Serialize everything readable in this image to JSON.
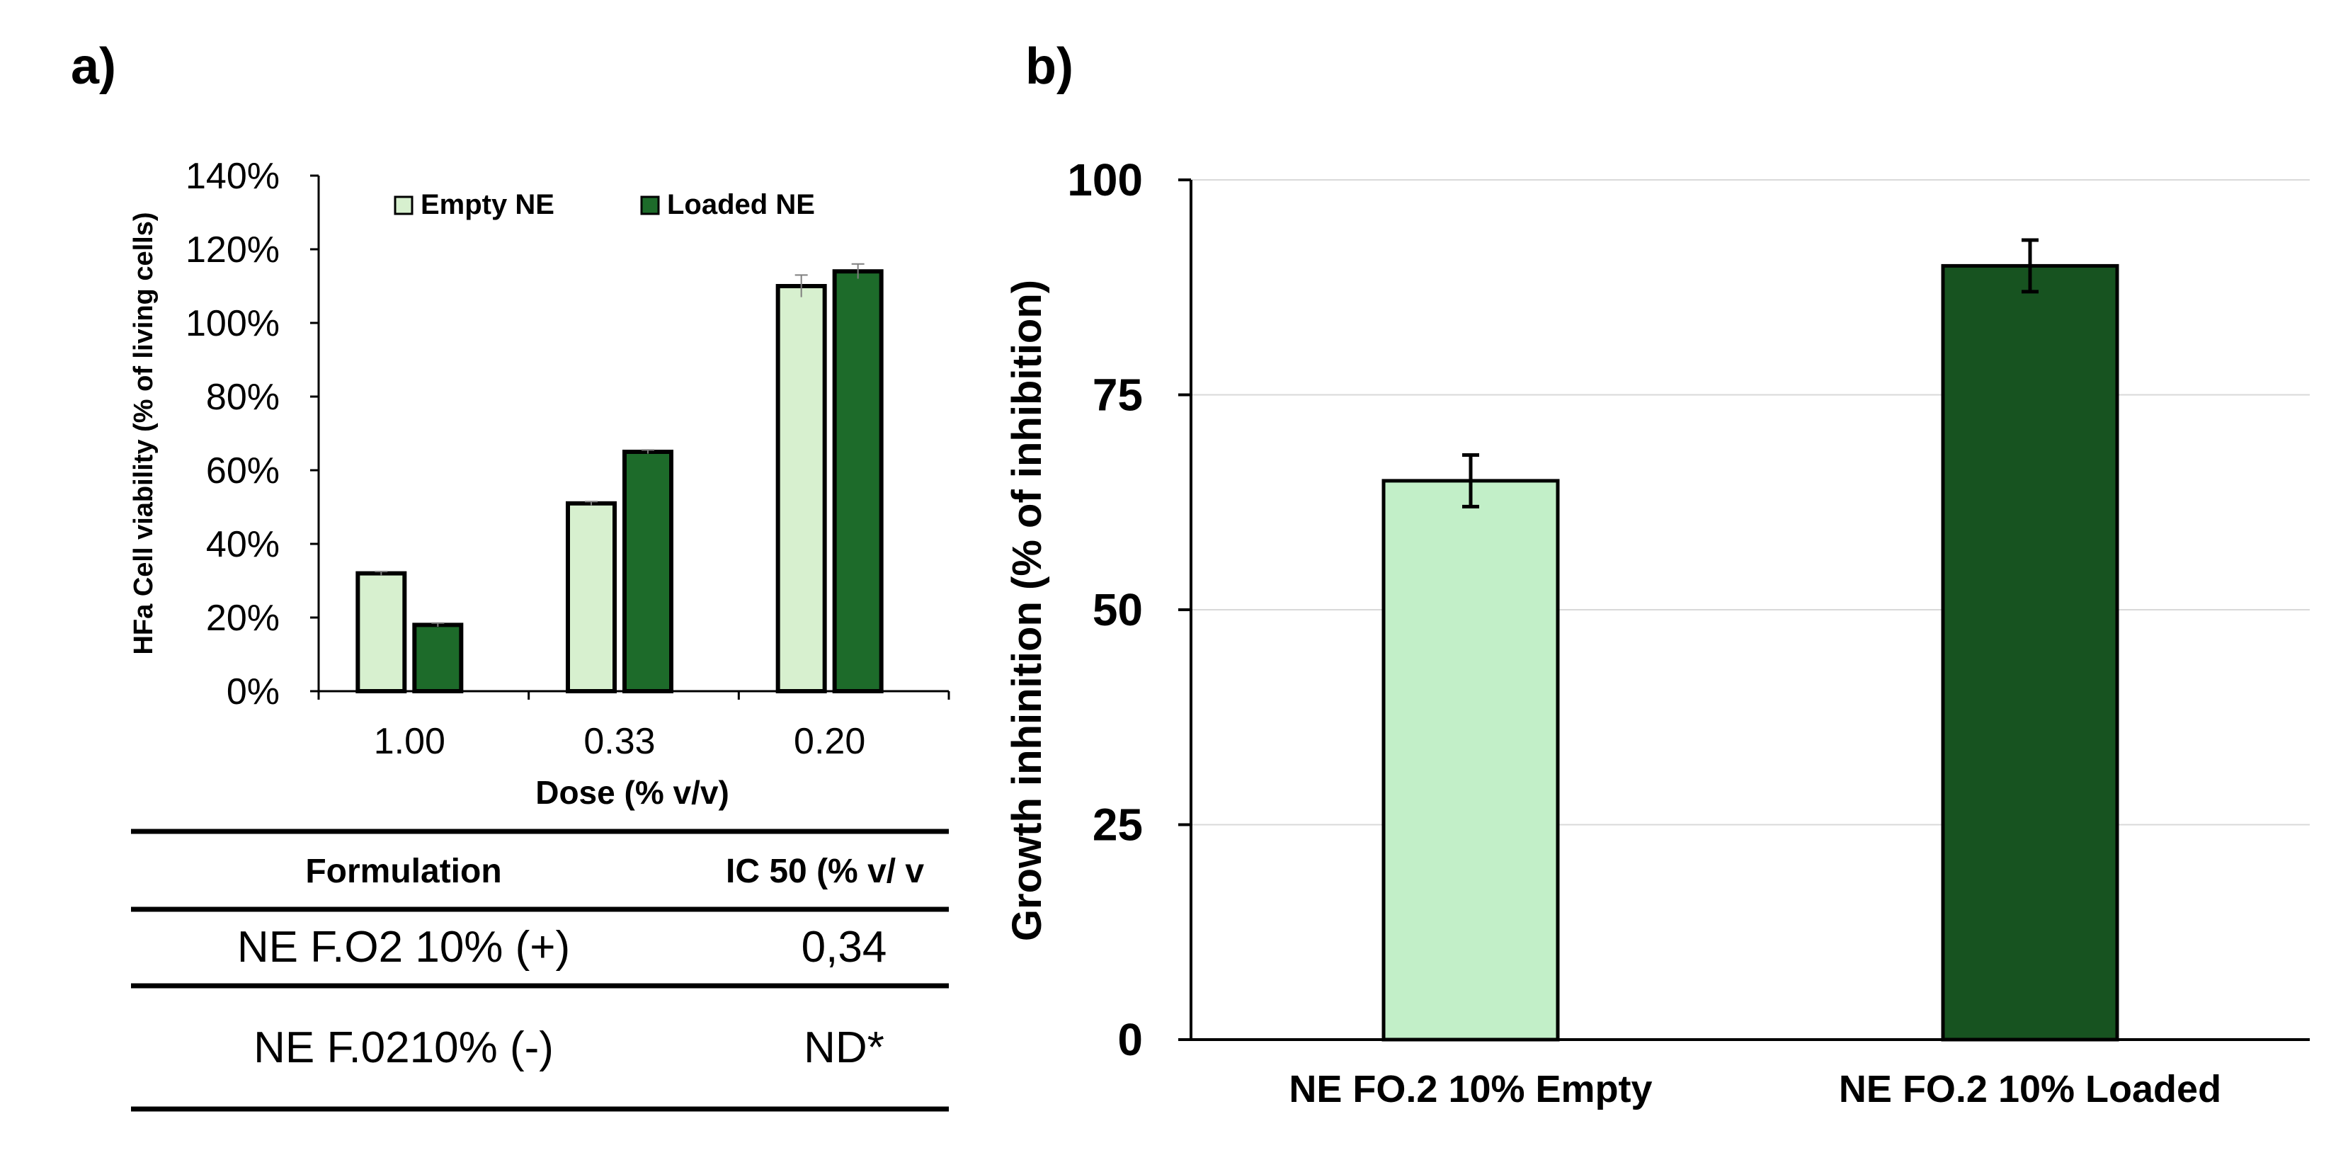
{
  "panels": {
    "a_label": "a)",
    "b_label": "b)"
  },
  "colors": {
    "empty": "#d7f0cf",
    "loaded": "#1d6b2a",
    "empty_b": "#c2efc8",
    "loaded_b": "#175320",
    "gridline": "#d9d9d9",
    "axis": "#000000",
    "errorbar_a": "#7f7f7f",
    "errorbar_b": "#000000"
  },
  "chart_data": [
    {
      "type": "bar",
      "panel": "a",
      "categories": [
        "1.00",
        "0.33",
        "0.20"
      ],
      "series": [
        {
          "name": "Empty NE",
          "values": [
            32,
            51,
            110
          ],
          "errors": [
            0.5,
            0.5,
            3
          ]
        },
        {
          "name": "Loaded NE",
          "values": [
            18,
            65,
            114
          ],
          "errors": [
            0.5,
            0.5,
            2
          ]
        }
      ],
      "xlabel": "Dose (% v/v)",
      "ylabel": "HFa Cell viability (% of living cells)",
      "ylim": [
        0,
        140
      ],
      "yticks": [
        "0%",
        "20%",
        "40%",
        "60%",
        "80%",
        "100%",
        "120%",
        "140%"
      ],
      "legend_position": "top",
      "grid": false
    },
    {
      "type": "bar",
      "panel": "b",
      "categories": [
        "NE FO.2 10% Empty",
        "NE FO.2 10% Loaded"
      ],
      "values": [
        65,
        90
      ],
      "errors": [
        3,
        3
      ],
      "ylabel": "Growth inhinition (% of inhibition)",
      "ylim": [
        0,
        100
      ],
      "yticks": [
        "0",
        "25",
        "50",
        "75",
        "100"
      ],
      "grid": true
    }
  ],
  "table": {
    "headers": [
      "Formulation",
      "IC 50 (% v/ v"
    ],
    "rows": [
      [
        "NE F.O2 10% (+)",
        "0,34"
      ],
      [
        "NE F.0210% (-)",
        "ND*"
      ]
    ]
  }
}
